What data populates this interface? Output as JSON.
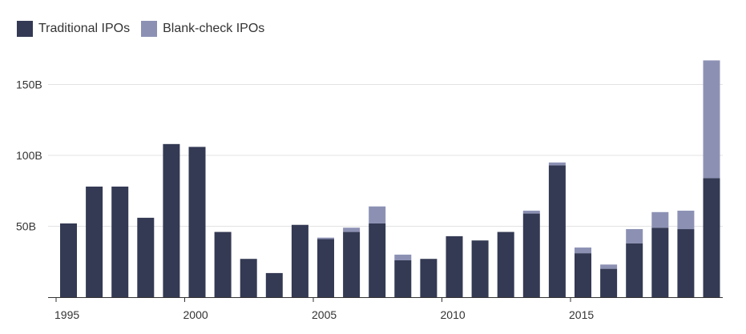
{
  "colors": {
    "traditional": "#343a54",
    "blank_check": "#8c91b4",
    "grid": "#e3e3e3",
    "axis": "#333333"
  },
  "chart_data": {
    "type": "bar",
    "stacked": true,
    "title": "",
    "xlabel": "",
    "ylabel": "",
    "ylim": [
      0,
      170
    ],
    "y_ticks": [
      {
        "value": 50,
        "label": "50B"
      },
      {
        "value": 100,
        "label": "100B"
      },
      {
        "value": 150,
        "label": "150B"
      }
    ],
    "x_ticks": [
      {
        "value": 1995,
        "label": "1995"
      },
      {
        "value": 2000,
        "label": "2000"
      },
      {
        "value": 2005,
        "label": "2005"
      },
      {
        "value": 2010,
        "label": "2010"
      },
      {
        "value": 2015,
        "label": "2015"
      }
    ],
    "grid": true,
    "legend_position": "top-left",
    "categories": [
      1995,
      1996,
      1997,
      1998,
      1999,
      2000,
      2001,
      2002,
      2003,
      2004,
      2005,
      2006,
      2007,
      2008,
      2009,
      2010,
      2011,
      2012,
      2013,
      2014,
      2015,
      2016,
      2017,
      2018,
      2019,
      2020
    ],
    "series": [
      {
        "name": "Traditional IPOs",
        "color_key": "traditional",
        "values": [
          52,
          78,
          78,
          56,
          108,
          106,
          46,
          27,
          17,
          51,
          41,
          46,
          52,
          26,
          27,
          43,
          40,
          46,
          59,
          93,
          31,
          20,
          38,
          49,
          48,
          84
        ]
      },
      {
        "name": "Blank-check IPOs",
        "color_key": "blank_check",
        "values": [
          0,
          0,
          0,
          0,
          0,
          0,
          0,
          0,
          0,
          0,
          1,
          3,
          12,
          4,
          0,
          0,
          0,
          0,
          2,
          2,
          4,
          3,
          10,
          11,
          13,
          83
        ]
      }
    ]
  }
}
